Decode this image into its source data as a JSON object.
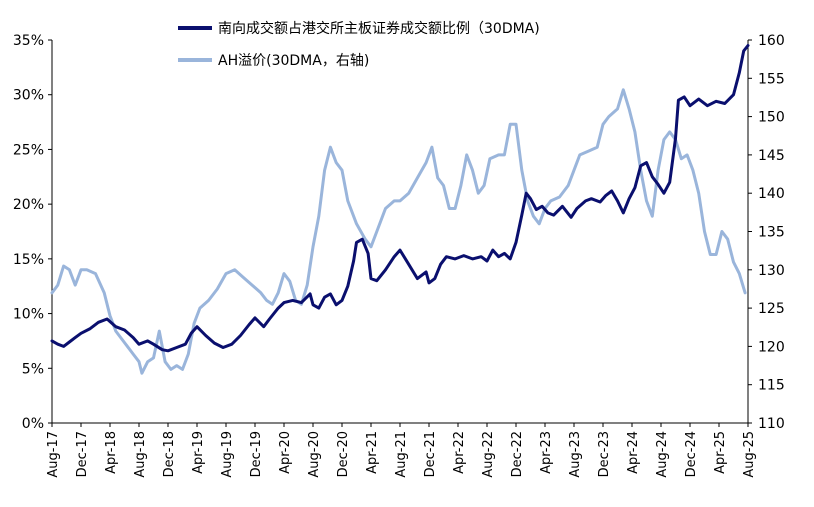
{
  "chart_data": {
    "type": "line",
    "x": [
      "Aug-17",
      "Dec-17",
      "Apr-18",
      "Aug-18",
      "Dec-18",
      "Apr-19",
      "Aug-19",
      "Dec-19",
      "Apr-20",
      "Aug-20",
      "Dec-20",
      "Apr-21",
      "Aug-21",
      "Dec-21",
      "Apr-22",
      "Aug-22",
      "Dec-22",
      "Apr-23",
      "Aug-23",
      "Dec-23",
      "Apr-24",
      "Aug-24",
      "Dec-24",
      "Apr-25",
      "Aug-25"
    ],
    "y_left_ticks": [
      "0%",
      "5%",
      "10%",
      "15%",
      "20%",
      "25%",
      "30%",
      "35%"
    ],
    "y_right_ticks": [
      "110",
      "115",
      "120",
      "125",
      "130",
      "135",
      "140",
      "145",
      "150",
      "155",
      "160"
    ],
    "y_left_range": [
      0,
      35
    ],
    "y_right_range": [
      110,
      160
    ],
    "legend_position": "top",
    "series": [
      {
        "name": "南向成交额占港交所主板证券成交额比例（30DMA)",
        "axis": "left",
        "color": "#0a0f6e",
        "points": [
          [
            0,
            7.5
          ],
          [
            0.2,
            7.2
          ],
          [
            0.4,
            7.0
          ],
          [
            0.6,
            7.4
          ],
          [
            0.8,
            7.8
          ],
          [
            1.0,
            8.2
          ],
          [
            1.3,
            8.6
          ],
          [
            1.6,
            9.2
          ],
          [
            1.9,
            9.5
          ],
          [
            2.2,
            8.8
          ],
          [
            2.5,
            8.5
          ],
          [
            2.8,
            7.8
          ],
          [
            3.0,
            7.2
          ],
          [
            3.3,
            7.5
          ],
          [
            3.5,
            7.2
          ],
          [
            3.8,
            6.7
          ],
          [
            4.0,
            6.6
          ],
          [
            4.3,
            6.9
          ],
          [
            4.6,
            7.2
          ],
          [
            4.8,
            8.2
          ],
          [
            5.0,
            8.8
          ],
          [
            5.3,
            8.0
          ],
          [
            5.6,
            7.3
          ],
          [
            5.9,
            6.9
          ],
          [
            6.2,
            7.2
          ],
          [
            6.5,
            8.0
          ],
          [
            6.8,
            9.0
          ],
          [
            7.0,
            9.6
          ],
          [
            7.3,
            8.8
          ],
          [
            7.5,
            9.5
          ],
          [
            7.8,
            10.5
          ],
          [
            8.0,
            11.0
          ],
          [
            8.3,
            11.2
          ],
          [
            8.6,
            11.0
          ],
          [
            8.9,
            11.8
          ],
          [
            9.0,
            10.8
          ],
          [
            9.2,
            10.5
          ],
          [
            9.4,
            11.5
          ],
          [
            9.6,
            11.8
          ],
          [
            9.8,
            10.8
          ],
          [
            10.0,
            11.2
          ],
          [
            10.2,
            12.5
          ],
          [
            10.4,
            14.8
          ],
          [
            10.5,
            16.5
          ],
          [
            10.7,
            16.8
          ],
          [
            10.9,
            15.5
          ],
          [
            11.0,
            13.2
          ],
          [
            11.2,
            13.0
          ],
          [
            11.5,
            14.0
          ],
          [
            11.8,
            15.2
          ],
          [
            12.0,
            15.8
          ],
          [
            12.3,
            14.5
          ],
          [
            12.6,
            13.2
          ],
          [
            12.9,
            13.8
          ],
          [
            13.0,
            12.8
          ],
          [
            13.2,
            13.2
          ],
          [
            13.4,
            14.5
          ],
          [
            13.6,
            15.2
          ],
          [
            13.9,
            15.0
          ],
          [
            14.2,
            15.3
          ],
          [
            14.5,
            15.0
          ],
          [
            14.8,
            15.2
          ],
          [
            15.0,
            14.8
          ],
          [
            15.2,
            15.8
          ],
          [
            15.4,
            15.2
          ],
          [
            15.6,
            15.5
          ],
          [
            15.8,
            15.0
          ],
          [
            16.0,
            16.5
          ],
          [
            16.2,
            19.0
          ],
          [
            16.35,
            21.0
          ],
          [
            16.5,
            20.5
          ],
          [
            16.7,
            19.5
          ],
          [
            16.9,
            19.8
          ],
          [
            17.1,
            19.2
          ],
          [
            17.3,
            19.0
          ],
          [
            17.6,
            19.8
          ],
          [
            17.9,
            18.8
          ],
          [
            18.1,
            19.6
          ],
          [
            18.4,
            20.3
          ],
          [
            18.6,
            20.5
          ],
          [
            18.9,
            20.2
          ],
          [
            19.1,
            20.8
          ],
          [
            19.3,
            21.2
          ],
          [
            19.5,
            20.3
          ],
          [
            19.7,
            19.2
          ],
          [
            19.9,
            20.5
          ],
          [
            20.1,
            21.5
          ],
          [
            20.3,
            23.5
          ],
          [
            20.5,
            23.8
          ],
          [
            20.7,
            22.5
          ],
          [
            20.9,
            21.8
          ],
          [
            21.1,
            21.0
          ],
          [
            21.3,
            22.0
          ],
          [
            21.5,
            26.0
          ],
          [
            21.6,
            29.5
          ],
          [
            21.8,
            29.8
          ],
          [
            22.0,
            29.0
          ],
          [
            22.3,
            29.6
          ],
          [
            22.6,
            29.0
          ],
          [
            22.9,
            29.4
          ],
          [
            23.2,
            29.2
          ],
          [
            23.5,
            30.0
          ],
          [
            23.7,
            32.0
          ],
          [
            23.85,
            34.0
          ],
          [
            24.0,
            34.5
          ]
        ]
      },
      {
        "name": "AH溢价(30DMA，右轴)",
        "axis": "right",
        "color": "#9ab5db",
        "points": [
          [
            0,
            127
          ],
          [
            0.2,
            128
          ],
          [
            0.4,
            130.5
          ],
          [
            0.6,
            130
          ],
          [
            0.8,
            128
          ],
          [
            1.0,
            130
          ],
          [
            1.2,
            130
          ],
          [
            1.5,
            129.5
          ],
          [
            1.8,
            127
          ],
          [
            2.0,
            124
          ],
          [
            2.2,
            122
          ],
          [
            2.5,
            120.5
          ],
          [
            2.8,
            119
          ],
          [
            3.0,
            118
          ],
          [
            3.1,
            116.5
          ],
          [
            3.3,
            118
          ],
          [
            3.5,
            118.5
          ],
          [
            3.7,
            122
          ],
          [
            3.9,
            118
          ],
          [
            4.1,
            117
          ],
          [
            4.3,
            117.5
          ],
          [
            4.5,
            117
          ],
          [
            4.7,
            119
          ],
          [
            4.9,
            123
          ],
          [
            5.1,
            125
          ],
          [
            5.4,
            126
          ],
          [
            5.7,
            127.5
          ],
          [
            6.0,
            129.5
          ],
          [
            6.3,
            130
          ],
          [
            6.6,
            129
          ],
          [
            6.9,
            128
          ],
          [
            7.2,
            127
          ],
          [
            7.4,
            126
          ],
          [
            7.6,
            125.5
          ],
          [
            7.8,
            127
          ],
          [
            8.0,
            129.5
          ],
          [
            8.2,
            128.5
          ],
          [
            8.4,
            126
          ],
          [
            8.6,
            125.5
          ],
          [
            8.8,
            128
          ],
          [
            9.0,
            133
          ],
          [
            9.2,
            137
          ],
          [
            9.4,
            143
          ],
          [
            9.6,
            146
          ],
          [
            9.8,
            144
          ],
          [
            10.0,
            143
          ],
          [
            10.2,
            139
          ],
          [
            10.5,
            136
          ],
          [
            10.8,
            134
          ],
          [
            11.0,
            133
          ],
          [
            11.2,
            135
          ],
          [
            11.5,
            138
          ],
          [
            11.8,
            139
          ],
          [
            12.0,
            139
          ],
          [
            12.3,
            140
          ],
          [
            12.6,
            142
          ],
          [
            12.9,
            144
          ],
          [
            13.1,
            146
          ],
          [
            13.3,
            142
          ],
          [
            13.5,
            141
          ],
          [
            13.7,
            138
          ],
          [
            13.9,
            138
          ],
          [
            14.1,
            141
          ],
          [
            14.3,
            145
          ],
          [
            14.5,
            143
          ],
          [
            14.7,
            140
          ],
          [
            14.9,
            141
          ],
          [
            15.1,
            144.5
          ],
          [
            15.4,
            145
          ],
          [
            15.6,
            145
          ],
          [
            15.8,
            149
          ],
          [
            16.0,
            149
          ],
          [
            16.2,
            143
          ],
          [
            16.4,
            139
          ],
          [
            16.6,
            137
          ],
          [
            16.8,
            136
          ],
          [
            17.0,
            138
          ],
          [
            17.2,
            139
          ],
          [
            17.5,
            139.5
          ],
          [
            17.8,
            141
          ],
          [
            18.0,
            143
          ],
          [
            18.2,
            145
          ],
          [
            18.5,
            145.5
          ],
          [
            18.8,
            146
          ],
          [
            19.0,
            149
          ],
          [
            19.2,
            150
          ],
          [
            19.5,
            151
          ],
          [
            19.7,
            153.5
          ],
          [
            19.9,
            151
          ],
          [
            20.1,
            148
          ],
          [
            20.3,
            143
          ],
          [
            20.5,
            139
          ],
          [
            20.7,
            137
          ],
          [
            20.9,
            143
          ],
          [
            21.1,
            147
          ],
          [
            21.3,
            148
          ],
          [
            21.5,
            147
          ],
          [
            21.7,
            144.5
          ],
          [
            21.9,
            145
          ],
          [
            22.1,
            143
          ],
          [
            22.3,
            140
          ],
          [
            22.5,
            135
          ],
          [
            22.7,
            132
          ],
          [
            22.9,
            132
          ],
          [
            23.1,
            135
          ],
          [
            23.3,
            134
          ],
          [
            23.5,
            131
          ],
          [
            23.7,
            129.5
          ],
          [
            23.9,
            127
          ]
        ]
      }
    ]
  }
}
